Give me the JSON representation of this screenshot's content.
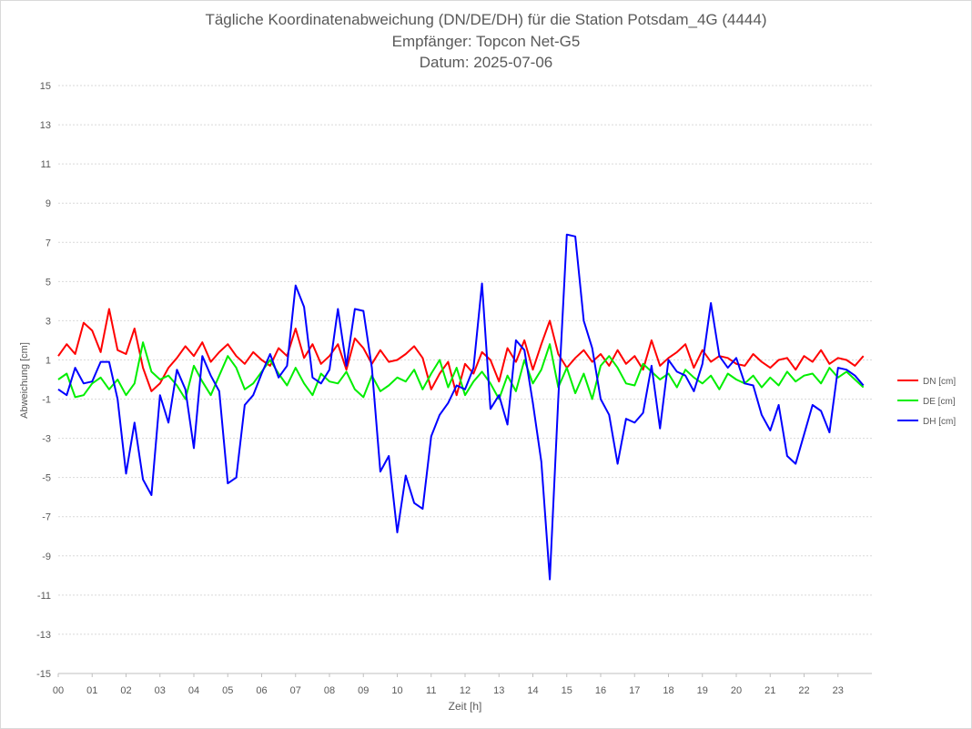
{
  "chart_data": {
    "type": "line",
    "title": "Tägliche Koordinatenabweichung (DN/DE/DH) für die Station Potsdam_4G (4444)",
    "subtitle_receiver": "Empfänger: Topcon Net-G5",
    "subtitle_date": "Datum: 2025-07-06",
    "xlabel": "Zeit [h]",
    "ylabel": "Abweichung [cm]",
    "x_tick_labels": [
      "00",
      "01",
      "02",
      "03",
      "04",
      "05",
      "06",
      "07",
      "08",
      "09",
      "10",
      "11",
      "12",
      "13",
      "14",
      "15",
      "16",
      "17",
      "18",
      "19",
      "20",
      "21",
      "22",
      "23"
    ],
    "y_tick_labels": [
      "15",
      "13",
      "11",
      "9",
      "7",
      "5",
      "3",
      "1",
      "-1",
      "-3",
      "-5",
      "-7",
      "-9",
      "-11",
      "-13",
      "-15"
    ],
    "xlim": [
      0,
      24
    ],
    "ylim": [
      -15,
      15
    ],
    "grid": "horizontal dashed",
    "legend_position": "right",
    "x": [
      0.0,
      0.25,
      0.5,
      0.75,
      1.0,
      1.25,
      1.5,
      1.75,
      2.0,
      2.25,
      2.5,
      2.75,
      3.0,
      3.25,
      3.5,
      3.75,
      4.0,
      4.25,
      4.5,
      4.75,
      5.0,
      5.25,
      5.5,
      5.75,
      6.0,
      6.25,
      6.5,
      6.75,
      7.0,
      7.25,
      7.5,
      7.75,
      8.0,
      8.25,
      8.5,
      8.75,
      9.0,
      9.25,
      9.5,
      9.75,
      10.0,
      10.25,
      10.5,
      10.75,
      11.0,
      11.25,
      11.5,
      11.75,
      12.0,
      12.25,
      12.5,
      12.75,
      13.0,
      13.25,
      13.5,
      13.75,
      14.0,
      14.25,
      14.5,
      14.75,
      15.0,
      15.25,
      15.5,
      15.75,
      16.0,
      16.25,
      16.5,
      16.75,
      17.0,
      17.25,
      17.5,
      17.75,
      18.0,
      18.25,
      18.5,
      18.75,
      19.0,
      19.25,
      19.5,
      19.75,
      20.0,
      20.25,
      20.5,
      20.75,
      21.0,
      21.25,
      21.5,
      21.75,
      22.0,
      22.25,
      22.5,
      22.75,
      23.0,
      23.25,
      23.5,
      23.75
    ],
    "series": [
      {
        "name": "DN [cm]",
        "color": "#ff0000",
        "values": [
          1.2,
          1.8,
          1.3,
          2.9,
          2.5,
          1.4,
          3.6,
          1.5,
          1.3,
          2.6,
          0.6,
          -0.6,
          -0.2,
          0.6,
          1.1,
          1.7,
          1.2,
          1.9,
          0.9,
          1.4,
          1.8,
          1.2,
          0.8,
          1.4,
          1.0,
          0.7,
          1.6,
          1.2,
          2.6,
          1.1,
          1.8,
          0.8,
          1.2,
          1.8,
          0.5,
          2.1,
          1.6,
          0.8,
          1.5,
          0.9,
          1.0,
          1.3,
          1.7,
          1.1,
          -0.5,
          0.3,
          0.9,
          -0.8,
          0.8,
          0.3,
          1.4,
          1.0,
          -0.1,
          1.6,
          0.9,
          2.0,
          0.5,
          1.8,
          3.0,
          1.3,
          0.6,
          1.1,
          1.5,
          0.9,
          1.3,
          0.7,
          1.5,
          0.8,
          1.2,
          0.5,
          2.0,
          0.7,
          1.1,
          1.4,
          1.8,
          0.6,
          1.5,
          0.9,
          1.2,
          1.1,
          0.8,
          0.7,
          1.3,
          0.9,
          0.6,
          1.0,
          1.1,
          0.5,
          1.2,
          0.9,
          1.5,
          0.8,
          1.1,
          1.0,
          0.7,
          1.2
        ]
      },
      {
        "name": "DE [cm]",
        "color": "#00ee00",
        "values": [
          0.0,
          0.3,
          -0.9,
          -0.8,
          -0.2,
          0.1,
          -0.5,
          0.0,
          -0.8,
          -0.2,
          1.9,
          0.4,
          0.0,
          0.2,
          -0.3,
          -1.0,
          0.7,
          -0.1,
          -0.8,
          0.2,
          1.2,
          0.6,
          -0.5,
          -0.2,
          0.4,
          1.0,
          0.3,
          -0.3,
          0.6,
          -0.2,
          -0.8,
          0.3,
          -0.1,
          -0.2,
          0.4,
          -0.5,
          -0.9,
          0.2,
          -0.6,
          -0.3,
          0.1,
          -0.1,
          0.5,
          -0.5,
          0.3,
          1.0,
          -0.4,
          0.6,
          -0.8,
          -0.1,
          0.4,
          -0.2,
          -1.0,
          0.2,
          -0.6,
          1.0,
          -0.2,
          0.5,
          1.8,
          -0.4,
          0.6,
          -0.7,
          0.3,
          -1.0,
          0.7,
          1.2,
          0.6,
          -0.2,
          -0.3,
          0.8,
          0.4,
          0.0,
          0.3,
          -0.4,
          0.5,
          0.1,
          -0.2,
          0.2,
          -0.5,
          0.3,
          0.0,
          -0.2,
          0.2,
          -0.4,
          0.1,
          -0.3,
          0.4,
          -0.1,
          0.2,
          0.3,
          -0.2,
          0.6,
          0.1,
          0.4,
          0.0,
          -0.4
        ]
      },
      {
        "name": "DH [cm]",
        "color": "#0000ff",
        "values": [
          -0.5,
          -0.8,
          0.6,
          -0.2,
          -0.1,
          0.9,
          0.9,
          -1.0,
          -4.8,
          -2.2,
          -5.1,
          -5.9,
          -0.8,
          -2.2,
          0.5,
          -0.5,
          -3.5,
          1.2,
          0.2,
          -0.6,
          -5.3,
          -5.0,
          -1.3,
          -0.8,
          0.3,
          1.3,
          0.1,
          0.7,
          4.8,
          3.7,
          0.1,
          -0.2,
          0.5,
          3.6,
          0.7,
          3.6,
          3.5,
          0.6,
          -4.7,
          -3.9,
          -7.8,
          -4.9,
          -6.3,
          -6.6,
          -2.9,
          -1.8,
          -1.2,
          -0.3,
          -0.5,
          0.6,
          4.9,
          -1.5,
          -0.8,
          -2.3,
          2.0,
          1.5,
          -1.2,
          -4.2,
          -10.2,
          -1.0,
          7.4,
          7.3,
          3.0,
          1.6,
          -1.0,
          -1.8,
          -4.3,
          -2.0,
          -2.2,
          -1.7,
          0.7,
          -2.5,
          1.0,
          0.4,
          0.2,
          -0.6,
          0.8,
          3.9,
          1.2,
          0.6,
          1.1,
          -0.2,
          -0.3,
          -1.8,
          -2.6,
          -1.3,
          -3.9,
          -4.3,
          -2.8,
          -1.3,
          -1.6,
          -2.7,
          0.6,
          0.5,
          0.2,
          -0.3
        ]
      }
    ]
  }
}
